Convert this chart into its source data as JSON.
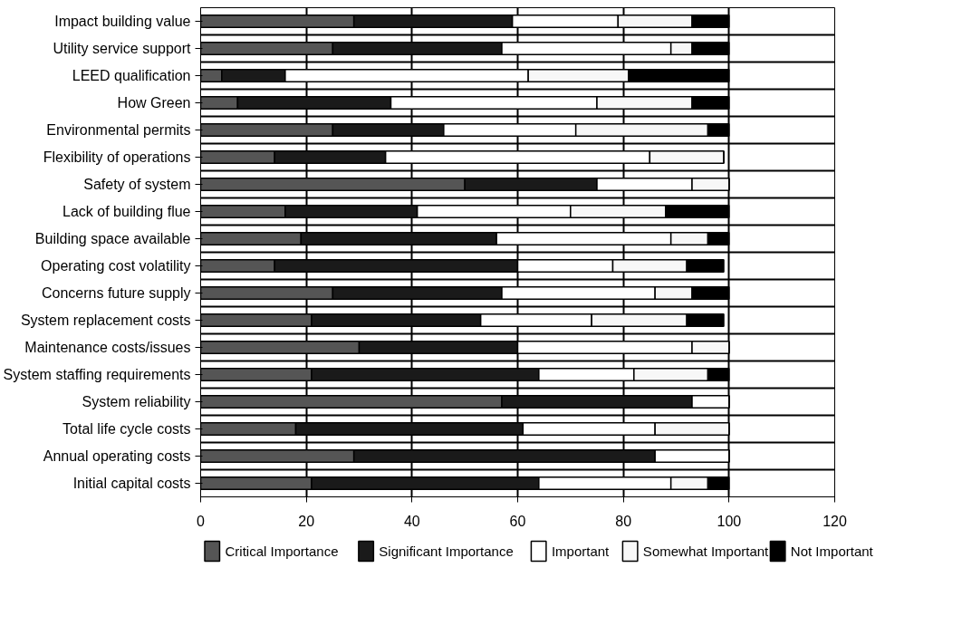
{
  "chart_data": {
    "type": "bar",
    "orientation": "horizontal",
    "stacked": true,
    "categories": [
      "Impact building value",
      "Utility service support",
      "LEED qualification",
      "How Green",
      "Environmental permits",
      "Flexibility of operations",
      "Safety of system",
      "Lack of building flue",
      "Building space available",
      "Operating cost volatility",
      "Concerns future supply",
      "System replacement costs",
      "Maintenance costs/issues",
      "System staffing requirements",
      "System reliability",
      "Total life cycle costs",
      "Annual operating costs",
      "Initial capital costs"
    ],
    "series": [
      {
        "name": "Critical Importance",
        "color": "#555555",
        "values": [
          29,
          25,
          4,
          7,
          25,
          14,
          50,
          16,
          19,
          14,
          25,
          21,
          30,
          21,
          57,
          18,
          29,
          21
        ]
      },
      {
        "name": "Significant Importance",
        "color": "#1a1a1a",
        "values": [
          30,
          32,
          12,
          29,
          21,
          21,
          25,
          25,
          37,
          46,
          32,
          32,
          30,
          43,
          36,
          43,
          57,
          43
        ]
      },
      {
        "name": "Important",
        "color": "#ffffff",
        "values": [
          20,
          32,
          46,
          39,
          25,
          50,
          18,
          29,
          33,
          18,
          29,
          21,
          33,
          18,
          7,
          25,
          14,
          25
        ]
      },
      {
        "name": "Somewhat Important",
        "color": "#f7f7f7",
        "values": [
          14,
          4,
          19,
          18,
          25,
          14,
          7,
          18,
          7,
          14,
          7,
          18,
          7,
          14,
          0,
          14,
          0,
          7
        ]
      },
      {
        "name": "Not Important",
        "color": "#000000",
        "values": [
          7,
          7,
          19,
          7,
          4,
          0,
          0,
          12,
          4,
          7,
          7,
          7,
          0,
          4,
          0,
          0,
          0,
          4
        ]
      }
    ],
    "xlim": [
      0,
      120
    ],
    "xticks": [
      0,
      20,
      40,
      60,
      80,
      100,
      120
    ],
    "grid": true,
    "legend": "bottom"
  }
}
